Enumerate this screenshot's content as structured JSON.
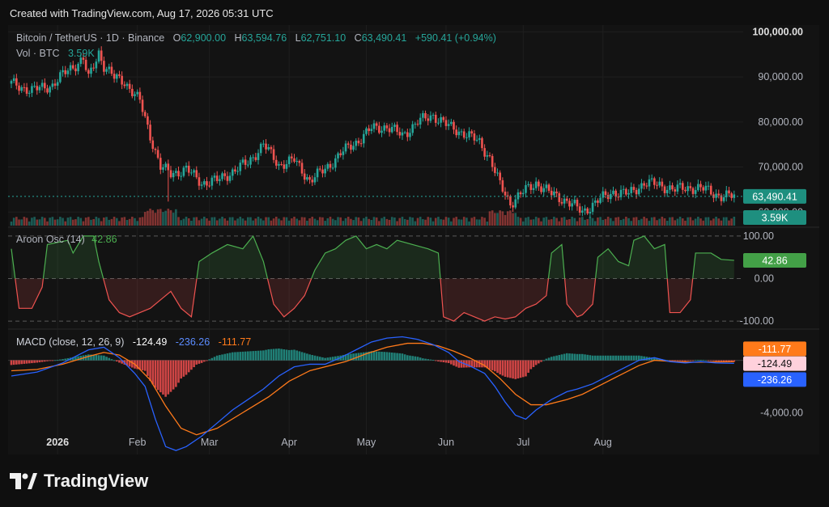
{
  "header": {
    "created": "Created with TradingView.com, Aug 17, 2026 05:31 UTC"
  },
  "footer": {
    "brand": "TradingView"
  },
  "colors": {
    "up": "#26a69a",
    "down": "#ef5350",
    "bg": "#131313",
    "grid": "#1f1f1f",
    "text": "#b2b5be",
    "orange": "#ff7a1a",
    "blue": "#2962ff",
    "pink": "#ffd1dc",
    "green_label": "#22ab94",
    "aroon_green": "#4caf50"
  },
  "chart_data": [
    {
      "type": "candlestick",
      "title_parts": {
        "symbol": "Bitcoin / TetherUS · 1D · Binance",
        "o_label": "O",
        "o": "62,900.00",
        "h_label": "H",
        "h": "63,594.76",
        "l_label": "L",
        "l": "62,751.10",
        "c_label": "C",
        "c": "63,490.41",
        "change": "+590.41 (+0.94%)"
      },
      "volume_label": "Vol · BTC",
      "volume_value": "3.59K",
      "y_axis_ticks": [
        "100,000.00",
        "90,000.00",
        "80,000.00",
        "70,000.00",
        "60,000.00"
      ],
      "y_axis_tick_values": [
        100000,
        90000,
        80000,
        70000,
        60000
      ],
      "ylim": [
        57000,
        101500
      ],
      "last_price_label": "63,490.41",
      "last_price": 63490.41,
      "volume_badge": "3.59K",
      "x_ticks": [
        "2026",
        "Feb",
        "Mar",
        "Apr",
        "May",
        "Jun",
        "Jul",
        "Aug"
      ],
      "anchor_closes": [
        {
          "d": 0,
          "c": 88500
        },
        {
          "d": 8,
          "c": 87000
        },
        {
          "d": 16,
          "c": 88200
        },
        {
          "d": 22,
          "c": 91500
        },
        {
          "d": 28,
          "c": 94000
        },
        {
          "d": 30,
          "c": 89500
        },
        {
          "d": 34,
          "c": 95500
        },
        {
          "d": 36,
          "c": 92500
        },
        {
          "d": 40,
          "c": 89800
        },
        {
          "d": 44,
          "c": 89000
        },
        {
          "d": 50,
          "c": 84500
        },
        {
          "d": 54,
          "c": 77000
        },
        {
          "d": 58,
          "c": 70000
        },
        {
          "d": 62,
          "c": 68500
        },
        {
          "d": 68,
          "c": 69500
        },
        {
          "d": 74,
          "c": 66500
        },
        {
          "d": 80,
          "c": 67000
        },
        {
          "d": 86,
          "c": 69000
        },
        {
          "d": 92,
          "c": 71000
        },
        {
          "d": 98,
          "c": 75000
        },
        {
          "d": 104,
          "c": 70500
        },
        {
          "d": 110,
          "c": 71500
        },
        {
          "d": 116,
          "c": 67000
        },
        {
          "d": 122,
          "c": 69500
        },
        {
          "d": 128,
          "c": 73000
        },
        {
          "d": 134,
          "c": 75500
        },
        {
          "d": 140,
          "c": 78500
        },
        {
          "d": 146,
          "c": 79000
        },
        {
          "d": 152,
          "c": 77000
        },
        {
          "d": 158,
          "c": 80000
        },
        {
          "d": 164,
          "c": 81500
        },
        {
          "d": 170,
          "c": 79000
        },
        {
          "d": 176,
          "c": 77500
        },
        {
          "d": 182,
          "c": 75500
        },
        {
          "d": 186,
          "c": 72000
        },
        {
          "d": 190,
          "c": 66000
        },
        {
          "d": 194,
          "c": 62000
        },
        {
          "d": 198,
          "c": 64000
        },
        {
          "d": 204,
          "c": 66500
        },
        {
          "d": 210,
          "c": 64000
        },
        {
          "d": 216,
          "c": 62500
        },
        {
          "d": 222,
          "c": 60000
        },
        {
          "d": 228,
          "c": 62500
        },
        {
          "d": 234,
          "c": 64500
        },
        {
          "d": 240,
          "c": 64000
        },
        {
          "d": 246,
          "c": 66500
        },
        {
          "d": 252,
          "c": 66000
        },
        {
          "d": 258,
          "c": 65000
        },
        {
          "d": 264,
          "c": 65500
        },
        {
          "d": 270,
          "c": 65000
        },
        {
          "d": 276,
          "c": 63500
        },
        {
          "d": 281,
          "c": 63490
        }
      ]
    },
    {
      "type": "line",
      "name": "Aroon Osc (14)",
      "value_label": "42.86",
      "y_axis_ticks": [
        "100.00",
        "0.00",
        "-100.00"
      ],
      "y_axis_tick_values": [
        100,
        0,
        -100
      ],
      "ylim": [
        -115,
        115
      ],
      "badge": "42.86",
      "points": [
        [
          0,
          70
        ],
        [
          3,
          -70
        ],
        [
          8,
          -70
        ],
        [
          12,
          -20
        ],
        [
          14,
          80
        ],
        [
          22,
          90
        ],
        [
          24,
          60
        ],
        [
          28,
          100
        ],
        [
          32,
          100
        ],
        [
          34,
          40
        ],
        [
          38,
          -50
        ],
        [
          42,
          -80
        ],
        [
          46,
          -90
        ],
        [
          50,
          -80
        ],
        [
          54,
          -70
        ],
        [
          58,
          -50
        ],
        [
          62,
          -30
        ],
        [
          66,
          -70
        ],
        [
          70,
          -90
        ],
        [
          73,
          40
        ],
        [
          78,
          60
        ],
        [
          84,
          80
        ],
        [
          90,
          70
        ],
        [
          94,
          100
        ],
        [
          98,
          40
        ],
        [
          102,
          -60
        ],
        [
          106,
          -90
        ],
        [
          110,
          -70
        ],
        [
          114,
          -40
        ],
        [
          118,
          20
        ],
        [
          122,
          60
        ],
        [
          126,
          70
        ],
        [
          130,
          90
        ],
        [
          134,
          100
        ],
        [
          138,
          70
        ],
        [
          142,
          80
        ],
        [
          146,
          70
        ],
        [
          150,
          90
        ],
        [
          156,
          80
        ],
        [
          162,
          70
        ],
        [
          166,
          60
        ],
        [
          168,
          -90
        ],
        [
          172,
          -100
        ],
        [
          176,
          -80
        ],
        [
          180,
          -90
        ],
        [
          184,
          -100
        ],
        [
          188,
          -90
        ],
        [
          192,
          -95
        ],
        [
          196,
          -90
        ],
        [
          200,
          -70
        ],
        [
          204,
          -60
        ],
        [
          208,
          -40
        ],
        [
          210,
          60
        ],
        [
          214,
          80
        ],
        [
          216,
          -60
        ],
        [
          220,
          -90
        ],
        [
          222,
          -85
        ],
        [
          226,
          -60
        ],
        [
          228,
          50
        ],
        [
          232,
          70
        ],
        [
          236,
          40
        ],
        [
          240,
          30
        ],
        [
          242,
          90
        ],
        [
          246,
          100
        ],
        [
          250,
          70
        ],
        [
          254,
          80
        ],
        [
          256,
          -80
        ],
        [
          260,
          -80
        ],
        [
          264,
          -50
        ],
        [
          266,
          60
        ],
        [
          272,
          60
        ],
        [
          276,
          45
        ],
        [
          281,
          42.86
        ]
      ]
    },
    {
      "type": "line",
      "name": "MACD (close, 12, 26, 9)",
      "values_shown": {
        "hist": "-124.49",
        "macd": "-236.26",
        "signal": "-111.77"
      },
      "y_axis_ticks": [
        "-4,000.00"
      ],
      "y_axis_tick_values": [
        -4000
      ],
      "ylim": [
        -7200,
        2200
      ],
      "badges": {
        "signal": "-111.77",
        "hist": "-124.49",
        "macd": "-236.26"
      },
      "macd_points": [
        [
          0,
          -1200
        ],
        [
          10,
          -900
        ],
        [
          20,
          -200
        ],
        [
          30,
          800
        ],
        [
          36,
          1000
        ],
        [
          42,
          200
        ],
        [
          48,
          -1000
        ],
        [
          52,
          -2000
        ],
        [
          56,
          -4500
        ],
        [
          60,
          -6600
        ],
        [
          64,
          -6900
        ],
        [
          68,
          -6600
        ],
        [
          74,
          -5800
        ],
        [
          80,
          -4800
        ],
        [
          86,
          -3800
        ],
        [
          92,
          -3000
        ],
        [
          98,
          -2200
        ],
        [
          104,
          -1200
        ],
        [
          110,
          -500
        ],
        [
          116,
          -300
        ],
        [
          122,
          -300
        ],
        [
          128,
          200
        ],
        [
          134,
          800
        ],
        [
          140,
          1400
        ],
        [
          146,
          1700
        ],
        [
          152,
          1800
        ],
        [
          158,
          1600
        ],
        [
          164,
          1200
        ],
        [
          170,
          600
        ],
        [
          174,
          -100
        ],
        [
          178,
          -400
        ],
        [
          184,
          -1000
        ],
        [
          188,
          -2000
        ],
        [
          192,
          -3200
        ],
        [
          196,
          -4200
        ],
        [
          200,
          -4500
        ],
        [
          204,
          -3800
        ],
        [
          210,
          -3000
        ],
        [
          216,
          -2400
        ],
        [
          220,
          -2200
        ],
        [
          226,
          -1800
        ],
        [
          232,
          -1200
        ],
        [
          238,
          -600
        ],
        [
          244,
          0
        ],
        [
          250,
          200
        ],
        [
          256,
          -100
        ],
        [
          262,
          -200
        ],
        [
          268,
          -100
        ],
        [
          274,
          -200
        ],
        [
          281,
          -236
        ]
      ],
      "signal_points": [
        [
          0,
          -800
        ],
        [
          10,
          -700
        ],
        [
          20,
          -300
        ],
        [
          30,
          300
        ],
        [
          36,
          600
        ],
        [
          42,
          400
        ],
        [
          48,
          -300
        ],
        [
          54,
          -1500
        ],
        [
          60,
          -3500
        ],
        [
          66,
          -5200
        ],
        [
          72,
          -5700
        ],
        [
          80,
          -5200
        ],
        [
          90,
          -4000
        ],
        [
          100,
          -2800
        ],
        [
          108,
          -1600
        ],
        [
          116,
          -800
        ],
        [
          124,
          -400
        ],
        [
          130,
          -100
        ],
        [
          138,
          500
        ],
        [
          146,
          1000
        ],
        [
          154,
          1300
        ],
        [
          160,
          1300
        ],
        [
          166,
          1100
        ],
        [
          172,
          700
        ],
        [
          178,
          200
        ],
        [
          184,
          -400
        ],
        [
          190,
          -1400
        ],
        [
          196,
          -2600
        ],
        [
          202,
          -3400
        ],
        [
          208,
          -3400
        ],
        [
          216,
          -3000
        ],
        [
          222,
          -2600
        ],
        [
          228,
          -2000
        ],
        [
          236,
          -1200
        ],
        [
          244,
          -400
        ],
        [
          250,
          0
        ],
        [
          258,
          -100
        ],
        [
          266,
          -150
        ],
        [
          274,
          -120
        ],
        [
          281,
          -112
        ]
      ]
    }
  ]
}
